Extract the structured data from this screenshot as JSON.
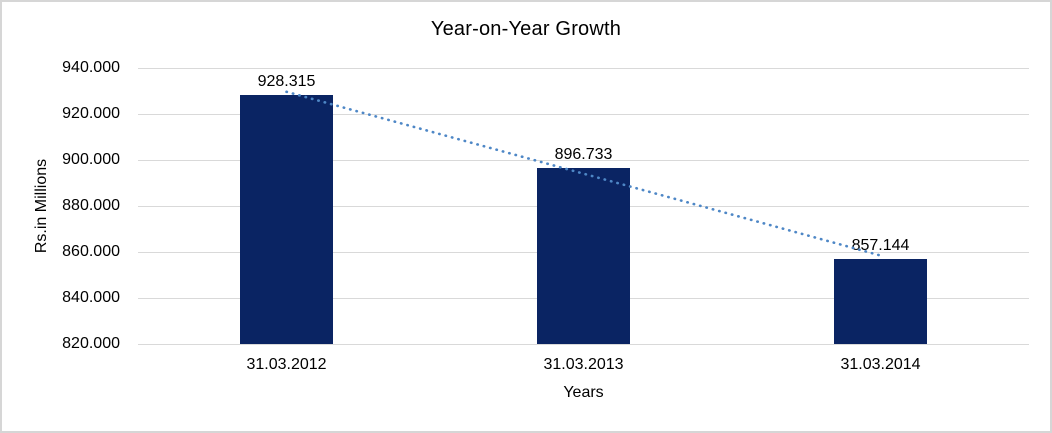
{
  "window": {
    "background_color": "#FFFFFF",
    "border_color": "#D6D6D6"
  },
  "chart_data": {
    "type": "bar",
    "title": "Year-on-Year Growth",
    "xlabel": "Years",
    "ylabel": "Rs.in Millions",
    "categories": [
      "31.03.2012",
      "31.03.2013",
      "31.03.2014"
    ],
    "values": [
      928.315,
      896.733,
      857.144
    ],
    "value_labels": [
      "928.315",
      "896.733",
      "857.144"
    ],
    "ylim": [
      820,
      940
    ],
    "ytick_step": 20,
    "ytick_labels": [
      "820.000",
      "840.000",
      "860.000",
      "880.000",
      "900.000",
      "920.000",
      "940.000"
    ],
    "grid": true,
    "legend": false,
    "colors": {
      "bar": "#0A2463",
      "gridline": "#D9D9D9",
      "trendline": "#4E87C6",
      "text": "#000000"
    },
    "trendline": {
      "type": "linear",
      "style": "dotted",
      "start_value": 929.65,
      "end_value": 858.47
    }
  }
}
